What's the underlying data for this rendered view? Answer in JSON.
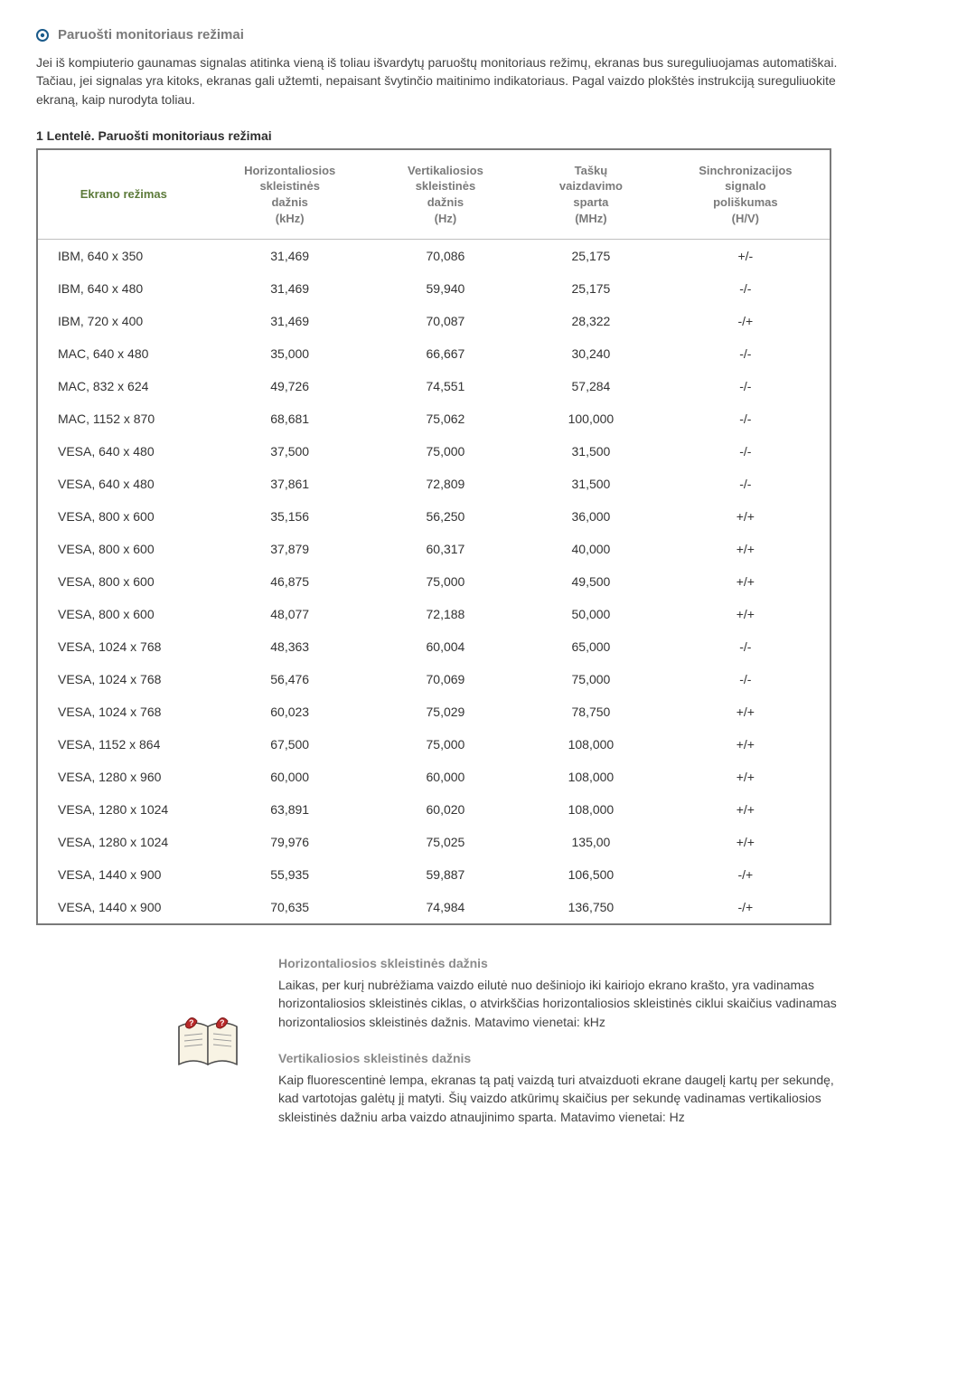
{
  "header": {
    "title": "Paruošti monitoriaus režimai"
  },
  "intro": "Jei iš kompiuterio gaunamas signalas atitinka vieną iš toliau išvardytų paruoštų monitoriaus režimų, ekranas bus sureguliuojamas automatiškai. Tačiau, jei signalas yra kitoks, ekranas gali užtemti, nepaisant švytinčio maitinimo indikatoriaus. Pagal vaizdo plokštės instrukciją sureguliuokite ekraną, kaip nurodyta toliau.",
  "table": {
    "caption": "1 Lentelė. Paruošti monitoriaus režimai",
    "columns": [
      "Ekrano režimas",
      "Horizontaliosios skleistinės dažnis (kHz)",
      "Vertikaliosios skleistinės dažnis (Hz)",
      "Taškų vaizdavimo sparta (MHz)",
      "Sinchronizacijos signalo poliškumas (H/V)"
    ],
    "col_header_html": [
      "Ekrano režimas",
      "Horizontaliosios<br>skleistinės<br>dažnis<br>(kHz)",
      "Vertikaliosios<br>skleistinės<br>dažnis<br>(Hz)",
      "Taškų<br>vaizdavimo<br>sparta<br>(MHz)",
      "Sinchronizacijos<br>signalo<br>poliškumas<br>(H/V)"
    ],
    "rows": [
      [
        "IBM, 640 x 350",
        "31,469",
        "70,086",
        "25,175",
        "+/-"
      ],
      [
        "IBM, 640 x 480",
        "31,469",
        "59,940",
        "25,175",
        "-/-"
      ],
      [
        "IBM, 720 x 400",
        "31,469",
        "70,087",
        "28,322",
        "-/+"
      ],
      [
        "MAC, 640 x 480",
        "35,000",
        "66,667",
        "30,240",
        "-/-"
      ],
      [
        "MAC, 832 x 624",
        "49,726",
        "74,551",
        "57,284",
        "-/-"
      ],
      [
        "MAC, 1152 x 870",
        "68,681",
        "75,062",
        "100,000",
        "-/-"
      ],
      [
        "VESA, 640 x 480",
        "37,500",
        "75,000",
        "31,500",
        "-/-"
      ],
      [
        "VESA, 640 x 480",
        "37,861",
        "72,809",
        "31,500",
        "-/-"
      ],
      [
        "VESA, 800 x 600",
        "35,156",
        "56,250",
        "36,000",
        "+/+"
      ],
      [
        "VESA, 800 x 600",
        "37,879",
        "60,317",
        "40,000",
        "+/+"
      ],
      [
        "VESA, 800 x 600",
        "46,875",
        "75,000",
        "49,500",
        "+/+"
      ],
      [
        "VESA, 800 x 600",
        "48,077",
        "72,188",
        "50,000",
        "+/+"
      ],
      [
        "VESA, 1024 x 768",
        "48,363",
        "60,004",
        "65,000",
        "-/-"
      ],
      [
        "VESA, 1024 x 768",
        "56,476",
        "70,069",
        "75,000",
        "-/-"
      ],
      [
        "VESA, 1024 x 768",
        "60,023",
        "75,029",
        "78,750",
        "+/+"
      ],
      [
        "VESA, 1152 x 864",
        "67,500",
        "75,000",
        "108,000",
        "+/+"
      ],
      [
        "VESA, 1280 x 960",
        "60,000",
        "60,000",
        "108,000",
        "+/+"
      ],
      [
        "VESA, 1280 x 1024",
        "63,891",
        "60,020",
        "108,000",
        "+/+"
      ],
      [
        "VESA, 1280 x 1024",
        "79,976",
        "75,025",
        "135,00",
        "+/+"
      ],
      [
        "VESA, 1440 x 900",
        "55,935",
        "59,887",
        "106,500",
        "-/+"
      ],
      [
        "VESA, 1440 x 900",
        "70,635",
        "74,984",
        "136,750",
        "-/+"
      ]
    ],
    "col_widths": [
      "200px",
      "170px",
      "160px",
      "150px",
      "180px"
    ],
    "border_color": "#7a7a7a",
    "header_color": "#7a7a7a",
    "first_header_color": "#5c7a3a"
  },
  "definitions": [
    {
      "title": "Horizontaliosios skleistinės dažnis",
      "body": "Laikas, per kurį nubrėžiama vaizdo eilutė nuo dešiniojo iki kairiojo ekrano krašto, yra vadinamas horizontaliosios skleistinės ciklas, o atvirkščias horizontaliosios skleistinės ciklui skaičius vadinamas horizontaliosios skleistinės dažnis. Matavimo vienetai: kHz"
    },
    {
      "title": "Vertikaliosios skleistinės dažnis",
      "body": "Kaip fluorescentinė lempa, ekranas tą patį vaizdą turi atvaizduoti ekrane daugelį kartų per sekundę, kad vartotojas galėtų jį matyti. Šių vaizdo atkūrimų skaičius per sekundę vadinamas vertikaliosios skleistinės dažniu arba vaizdo atnaujinimo sparta. Matavimo vienetai: Hz"
    }
  ],
  "colors": {
    "page_bg": "#ffffff",
    "text": "#333333",
    "muted": "#7a7a7a",
    "accent_green": "#5c7a3a",
    "icon_blue": "#1a5a8a",
    "book_red": "#b92a2a",
    "book_page": "#f8f3e4"
  }
}
